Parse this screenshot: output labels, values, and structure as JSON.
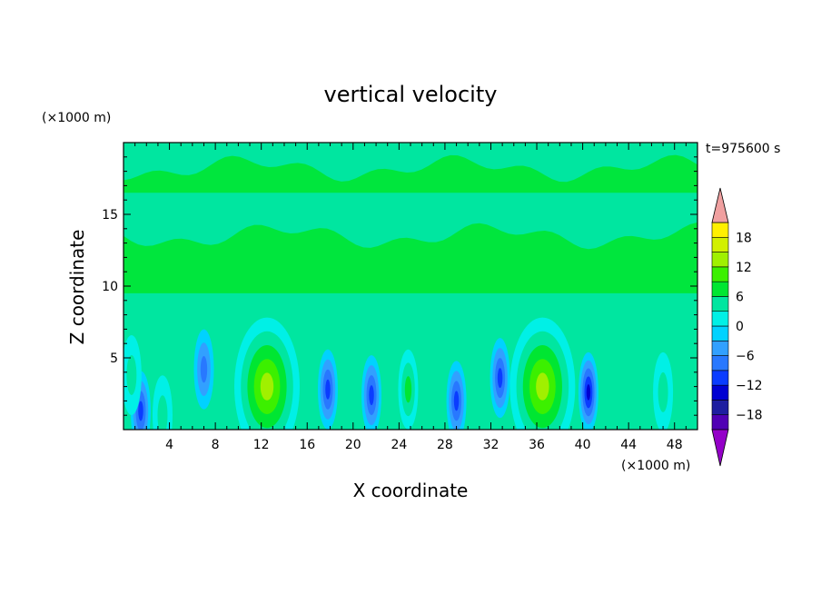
{
  "chart_data": {
    "type": "heatmap",
    "title": "vertical velocity",
    "xlabel": "X coordinate",
    "ylabel": "Z coordinate",
    "x_unit": "(×1000 m)",
    "y_unit": "(×1000 m)",
    "time_label": "t=975600 s",
    "xlim": [
      0,
      50
    ],
    "ylim": [
      0,
      20
    ],
    "x_ticks": [
      4,
      8,
      12,
      16,
      20,
      24,
      28,
      32,
      36,
      40,
      44,
      48
    ],
    "y_ticks": [
      5,
      10,
      15
    ],
    "colorbar": {
      "min": -21,
      "max": 21,
      "step": 3,
      "tick_labels": [
        18,
        12,
        6,
        0,
        -6,
        -12,
        -18
      ],
      "extend": "both",
      "colors": [
        "#9400c8",
        "#5000b4",
        "#1e1ea0",
        "#0000d2",
        "#0a3cff",
        "#2878ff",
        "#32a0ff",
        "#00d2ff",
        "#00f0e6",
        "#00e6a0",
        "#00e632",
        "#3cf000",
        "#a0f000",
        "#d2f000",
        "#fff000",
        "#ffc800",
        "#ffa000",
        "#ff7800",
        "#ff5000",
        "#ff2800",
        "#e60000",
        "#f0a0a0"
      ]
    },
    "features": [
      {
        "x": 12.5,
        "z": 3.0,
        "value": 14
      },
      {
        "x": 36.5,
        "z": 3.0,
        "value": 15
      },
      {
        "x": 1.5,
        "z": 1.3,
        "value": -12
      },
      {
        "x": 7.0,
        "z": 4.2,
        "value": -9
      },
      {
        "x": 17.8,
        "z": 2.8,
        "value": -11
      },
      {
        "x": 21.6,
        "z": 2.4,
        "value": -12
      },
      {
        "x": 24.8,
        "z": 2.8,
        "value": 7
      },
      {
        "x": 29.0,
        "z": 2.0,
        "value": -12
      },
      {
        "x": 32.8,
        "z": 3.6,
        "value": -11
      },
      {
        "x": 40.5,
        "z": 2.6,
        "value": -13
      },
      {
        "x": 47.0,
        "z": 2.6,
        "value": 6
      },
      {
        "x": 3.4,
        "z": 1.0,
        "value": 5
      },
      {
        "x": 0.7,
        "z": 3.8,
        "value": 4
      }
    ]
  }
}
